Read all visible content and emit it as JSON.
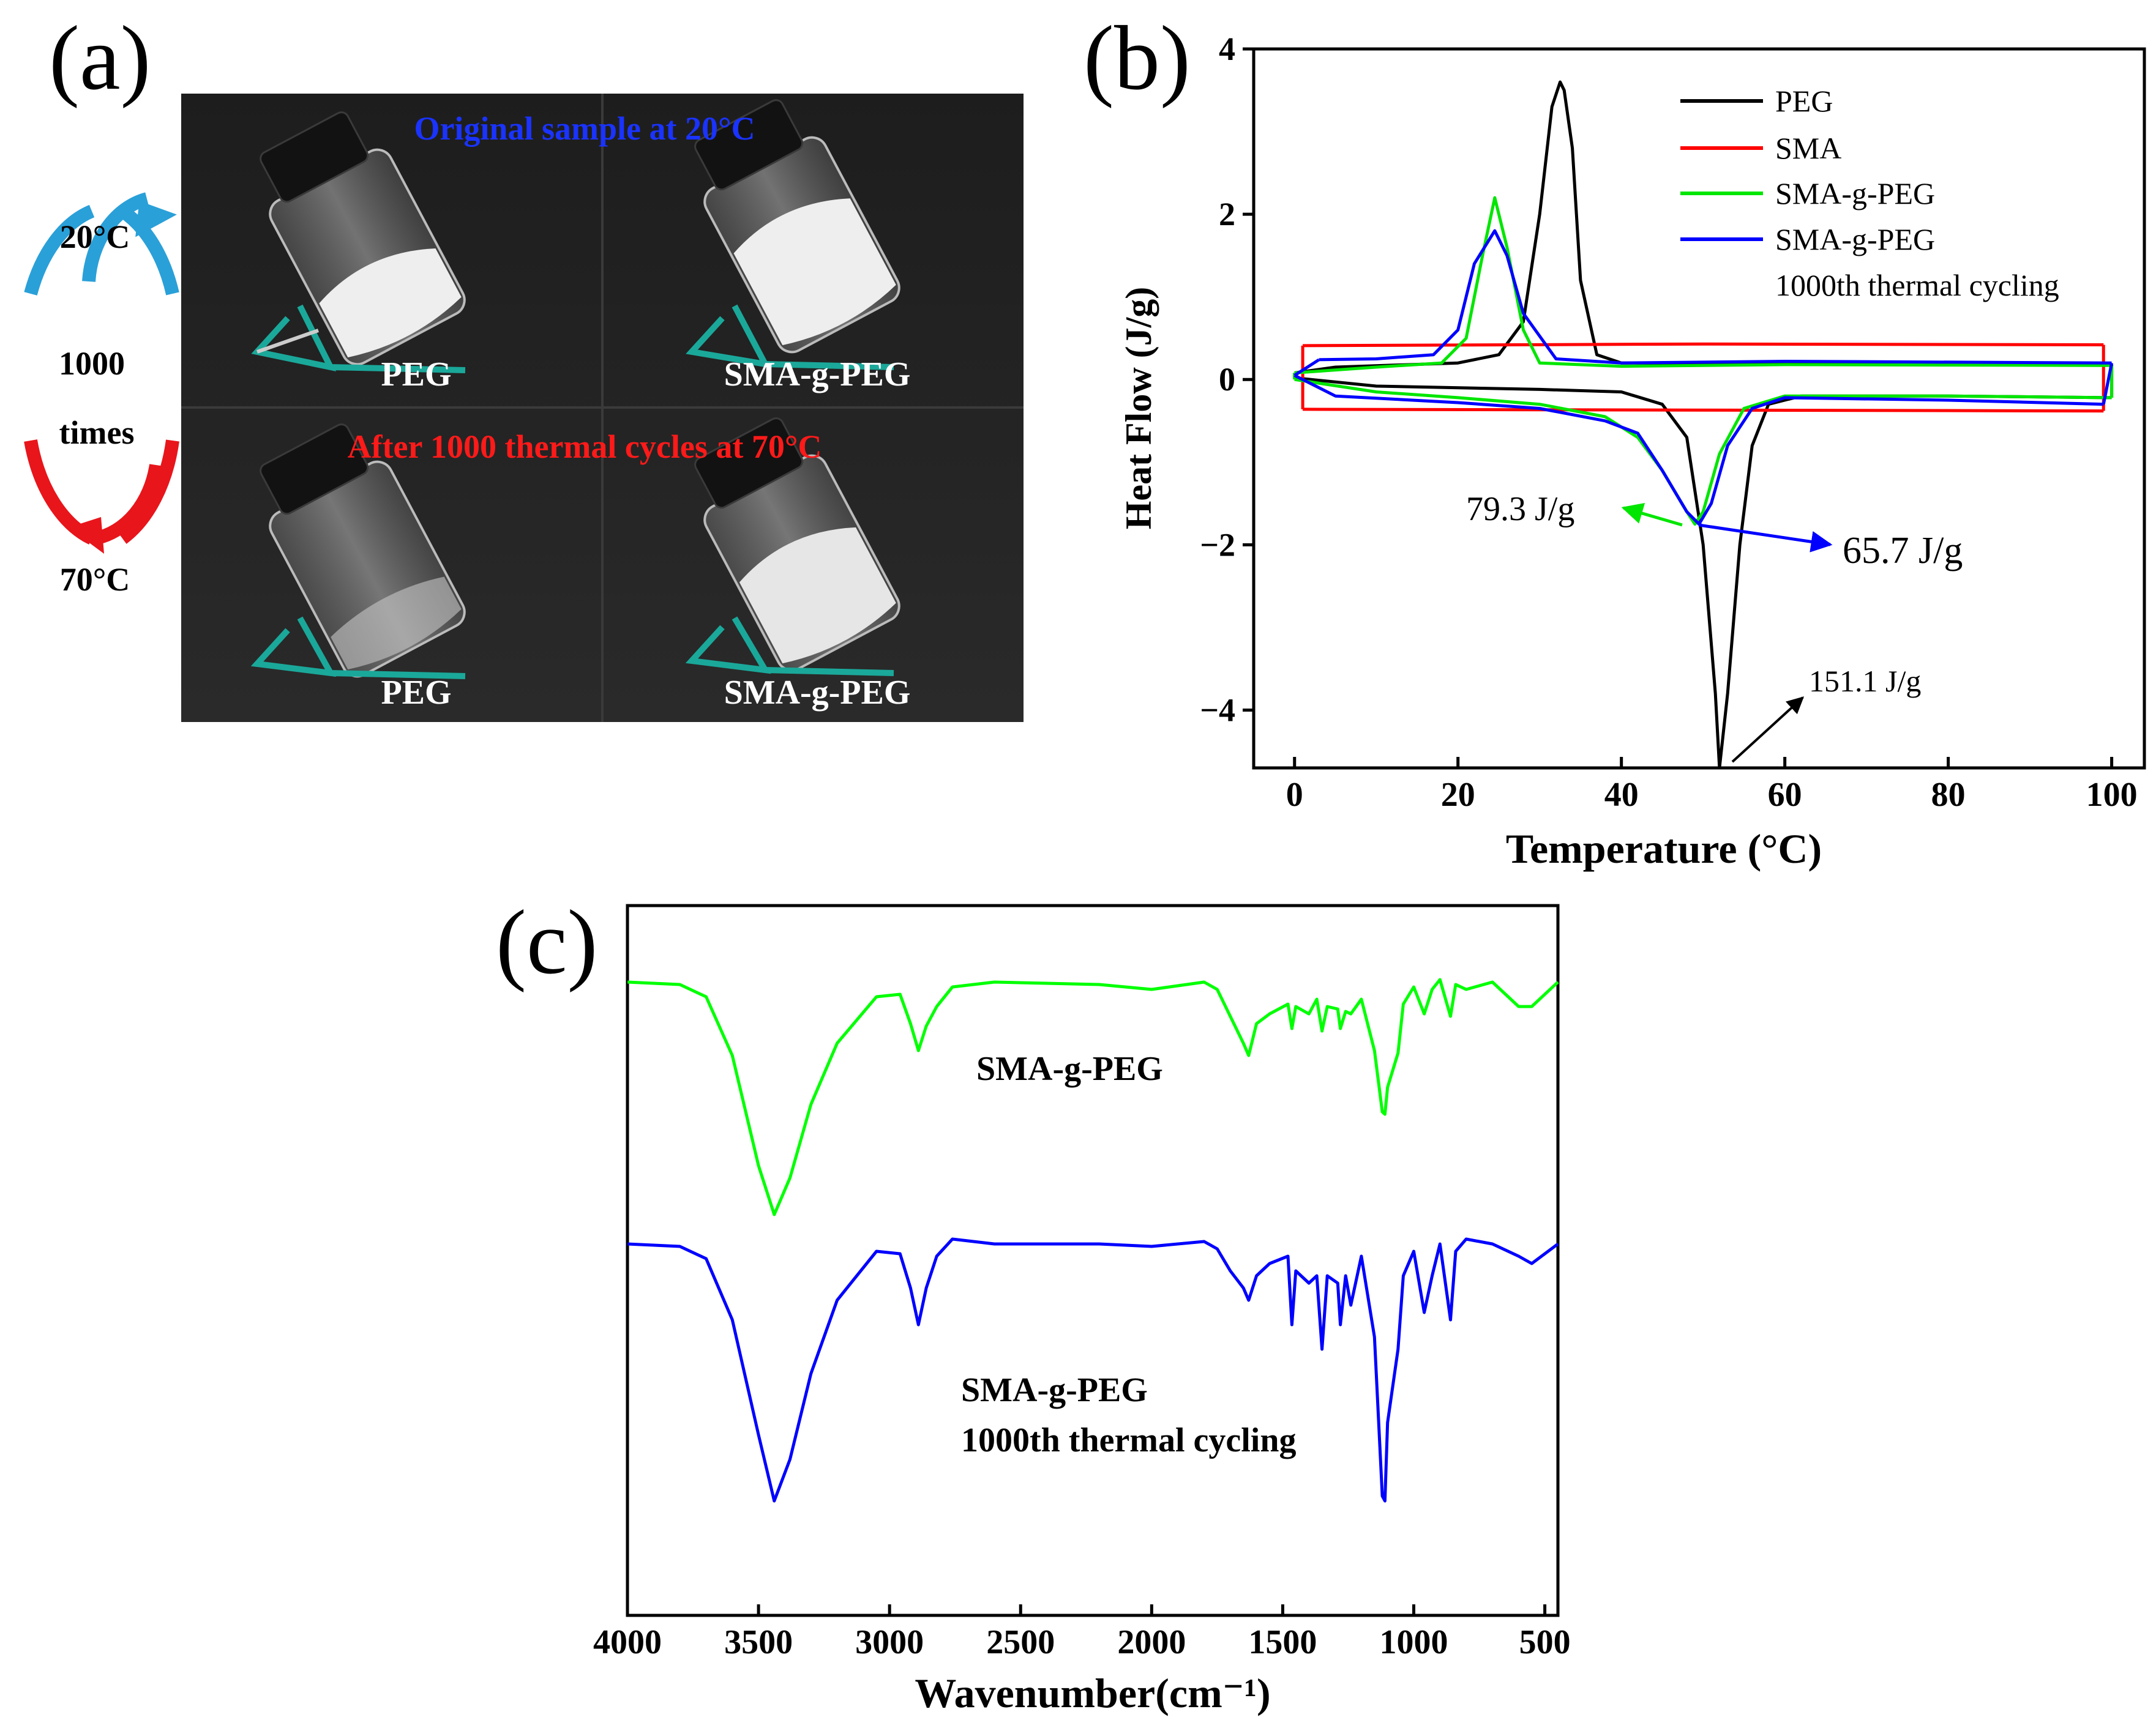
{
  "panel_a": {
    "label": "(a)",
    "cycle": {
      "top_temp": "20°C",
      "count": "1000",
      "unit": "times",
      "bottom_temp": "70°C"
    },
    "photo_top_title": "Original sample at 20°C",
    "photo_bottom_title": "After 1000 thermal cycles at 70°C",
    "photo_labels": [
      "PEG",
      "SMA-g-PEG",
      "PEG",
      "SMA-g-PEG"
    ],
    "colors": {
      "top_title": "#1a33ff",
      "bottom_title": "#ff1a1a",
      "arrow_up": "#2aa0d8",
      "arrow_down": "#e8151b"
    }
  },
  "panel_b_label": "(b)",
  "panel_c_label": "(c)",
  "chart_data": [
    {
      "type": "line",
      "xlabel": "Temperature (°C)",
      "ylabel": "Heat Flow (J/g)",
      "xlim": [
        -5,
        104
      ],
      "ylim": [
        -4.7,
        4
      ],
      "xticks": [
        0,
        20,
        40,
        60,
        80,
        100
      ],
      "yticks": [
        -4,
        -2,
        0,
        2,
        4
      ],
      "ytick_labels": [
        "−4",
        "−2",
        "0",
        "2",
        "4"
      ],
      "grid": false,
      "legend_position": "top-right",
      "legend_extra_line": "1000th thermal cycling",
      "series": [
        {
          "name": "PEG",
          "color": "#000000",
          "cooling": [
            [
              100,
              0.18
            ],
            [
              60,
              0.19
            ],
            [
              40,
              0.2
            ],
            [
              37,
              0.3
            ],
            [
              35,
              1.2
            ],
            [
              34,
              2.8
            ],
            [
              33,
              3.5
            ],
            [
              32.5,
              3.6
            ],
            [
              31.5,
              3.3
            ],
            [
              30,
              2.0
            ],
            [
              28,
              0.7
            ],
            [
              25,
              0.3
            ],
            [
              20,
              0.2
            ],
            [
              5,
              0.15
            ],
            [
              0,
              0.08
            ]
          ],
          "heating": [
            [
              0,
              0.02
            ],
            [
              10,
              -0.08
            ],
            [
              30,
              -0.12
            ],
            [
              40,
              -0.15
            ],
            [
              45,
              -0.3
            ],
            [
              48,
              -0.7
            ],
            [
              50,
              -2.0
            ],
            [
              51.5,
              -3.8
            ],
            [
              52,
              -4.7
            ],
            [
              53,
              -3.8
            ],
            [
              54.5,
              -2.0
            ],
            [
              56,
              -0.8
            ],
            [
              58,
              -0.3
            ],
            [
              62,
              -0.2
            ],
            [
              80,
              -0.2
            ],
            [
              100,
              -0.22
            ]
          ]
        },
        {
          "name": "SMA",
          "color": "#ff0000",
          "cooling": [
            [
              99,
              0.42
            ],
            [
              50,
              0.43
            ],
            [
              1,
              0.41
            ]
          ],
          "heating": [
            [
              1,
              -0.36
            ],
            [
              50,
              -0.37
            ],
            [
              99,
              -0.38
            ]
          ]
        },
        {
          "name": "SMA-g-PEG",
          "color": "#00e600",
          "cooling": [
            [
              100,
              0.17
            ],
            [
              60,
              0.18
            ],
            [
              40,
              0.16
            ],
            [
              30,
              0.2
            ],
            [
              28,
              0.6
            ],
            [
              26,
              1.6
            ],
            [
              24.5,
              2.2
            ],
            [
              23,
              1.5
            ],
            [
              21,
              0.5
            ],
            [
              18,
              0.2
            ],
            [
              10,
              0.15
            ],
            [
              0,
              0.08
            ]
          ],
          "heating": [
            [
              0,
              0.0
            ],
            [
              10,
              -0.15
            ],
            [
              20,
              -0.22
            ],
            [
              30,
              -0.3
            ],
            [
              38,
              -0.45
            ],
            [
              42,
              -0.7
            ],
            [
              45,
              -1.1
            ],
            [
              48,
              -1.6
            ],
            [
              49,
              -1.75
            ],
            [
              50,
              -1.6
            ],
            [
              52,
              -0.9
            ],
            [
              55,
              -0.35
            ],
            [
              60,
              -0.2
            ],
            [
              80,
              -0.2
            ],
            [
              100,
              -0.22
            ]
          ]
        },
        {
          "name": "SMA-g-PEG",
          "color": "#0000ff",
          "cooling": [
            [
              100,
              0.2
            ],
            [
              60,
              0.22
            ],
            [
              40,
              0.2
            ],
            [
              32,
              0.25
            ],
            [
              28,
              0.8
            ],
            [
              26,
              1.5
            ],
            [
              24.5,
              1.8
            ],
            [
              22,
              1.4
            ],
            [
              20,
              0.6
            ],
            [
              17,
              0.3
            ],
            [
              10,
              0.25
            ],
            [
              3,
              0.24
            ]
          ],
          "heating": [
            [
              0,
              0.05
            ],
            [
              5,
              -0.2
            ],
            [
              20,
              -0.28
            ],
            [
              30,
              -0.35
            ],
            [
              38,
              -0.5
            ],
            [
              42,
              -0.65
            ],
            [
              45,
              -1.1
            ],
            [
              48,
              -1.6
            ],
            [
              49.5,
              -1.75
            ],
            [
              51,
              -1.5
            ],
            [
              53,
              -0.8
            ],
            [
              56,
              -0.35
            ],
            [
              60,
              -0.22
            ],
            [
              80,
              -0.25
            ],
            [
              99,
              -0.3
            ]
          ]
        }
      ],
      "annotations": [
        {
          "text": "79.3 J/g",
          "color": "#00e600",
          "target": [
            49,
            -1.75
          ]
        },
        {
          "text": "65.7 J/g",
          "color": "#0000ff",
          "target": [
            49.5,
            -1.75
          ]
        },
        {
          "text": "151.1 J/g",
          "color": "#000000",
          "target": [
            52,
            -4.7
          ]
        }
      ]
    },
    {
      "type": "line",
      "xlabel": "Wavenumber(cm⁻¹)",
      "xlim": [
        4000,
        450
      ],
      "xticks": [
        4000,
        3500,
        3000,
        2500,
        2000,
        1500,
        1000,
        500
      ],
      "yticks": [],
      "grid": false,
      "series": [
        {
          "name": "SMA-g-PEG",
          "color": "#00ff00",
          "points": [
            [
              4000,
              0.0
            ],
            [
              3800,
              0.01
            ],
            [
              3700,
              0.06
            ],
            [
              3600,
              0.3
            ],
            [
              3500,
              0.75
            ],
            [
              3440,
              0.95
            ],
            [
              3380,
              0.8
            ],
            [
              3300,
              0.5
            ],
            [
              3200,
              0.25
            ],
            [
              3050,
              0.06
            ],
            [
              2960,
              0.05
            ],
            [
              2920,
              0.17
            ],
            [
              2890,
              0.28
            ],
            [
              2860,
              0.18
            ],
            [
              2820,
              0.1
            ],
            [
              2760,
              0.02
            ],
            [
              2600,
              0.0
            ],
            [
              2200,
              0.01
            ],
            [
              2000,
              0.03
            ],
            [
              1800,
              0.0
            ],
            [
              1750,
              0.03
            ],
            [
              1700,
              0.14
            ],
            [
              1650,
              0.25
            ],
            [
              1630,
              0.3
            ],
            [
              1600,
              0.17
            ],
            [
              1550,
              0.13
            ],
            [
              1480,
              0.09
            ],
            [
              1465,
              0.19
            ],
            [
              1450,
              0.1
            ],
            [
              1400,
              0.13
            ],
            [
              1370,
              0.07
            ],
            [
              1350,
              0.2
            ],
            [
              1330,
              0.1
            ],
            [
              1290,
              0.11
            ],
            [
              1280,
              0.19
            ],
            [
              1260,
              0.12
            ],
            [
              1240,
              0.13
            ],
            [
              1200,
              0.07
            ],
            [
              1150,
              0.28
            ],
            [
              1120,
              0.53
            ],
            [
              1110,
              0.54
            ],
            [
              1100,
              0.43
            ],
            [
              1060,
              0.29
            ],
            [
              1040,
              0.09
            ],
            [
              1000,
              0.02
            ],
            [
              960,
              0.13
            ],
            [
              930,
              0.03
            ],
            [
              900,
              -0.01
            ],
            [
              860,
              0.14
            ],
            [
              840,
              0.01
            ],
            [
              800,
              0.03
            ],
            [
              700,
              0.0
            ],
            [
              600,
              0.1
            ],
            [
              550,
              0.1
            ],
            [
              450,
              0.0
            ]
          ]
        },
        {
          "name": "SMA-g-PEG",
          "color": "#0000ff",
          "points": [
            [
              4000,
              1.07
            ],
            [
              3800,
              1.08
            ],
            [
              3700,
              1.13
            ],
            [
              3600,
              1.38
            ],
            [
              3500,
              1.85
            ],
            [
              3440,
              2.12
            ],
            [
              3380,
              1.95
            ],
            [
              3300,
              1.6
            ],
            [
              3200,
              1.3
            ],
            [
              3050,
              1.1
            ],
            [
              2960,
              1.11
            ],
            [
              2920,
              1.25
            ],
            [
              2890,
              1.4
            ],
            [
              2860,
              1.25
            ],
            [
              2820,
              1.12
            ],
            [
              2760,
              1.05
            ],
            [
              2600,
              1.07
            ],
            [
              2200,
              1.07
            ],
            [
              2000,
              1.08
            ],
            [
              1800,
              1.06
            ],
            [
              1750,
              1.09
            ],
            [
              1700,
              1.18
            ],
            [
              1650,
              1.25
            ],
            [
              1630,
              1.3
            ],
            [
              1600,
              1.2
            ],
            [
              1550,
              1.15
            ],
            [
              1480,
              1.12
            ],
            [
              1465,
              1.4
            ],
            [
              1450,
              1.18
            ],
            [
              1400,
              1.23
            ],
            [
              1370,
              1.2
            ],
            [
              1350,
              1.5
            ],
            [
              1330,
              1.2
            ],
            [
              1290,
              1.23
            ],
            [
              1280,
              1.4
            ],
            [
              1260,
              1.2
            ],
            [
              1240,
              1.32
            ],
            [
              1200,
              1.12
            ],
            [
              1150,
              1.45
            ],
            [
              1120,
              2.1
            ],
            [
              1110,
              2.12
            ],
            [
              1100,
              1.8
            ],
            [
              1060,
              1.5
            ],
            [
              1040,
              1.2
            ],
            [
              1000,
              1.1
            ],
            [
              960,
              1.35
            ],
            [
              930,
              1.2
            ],
            [
              900,
              1.07
            ],
            [
              860,
              1.38
            ],
            [
              840,
              1.1
            ],
            [
              800,
              1.05
            ],
            [
              700,
              1.07
            ],
            [
              600,
              1.12
            ],
            [
              550,
              1.15
            ],
            [
              450,
              1.07
            ]
          ]
        }
      ],
      "annotations": [
        {
          "text": "SMA-g-PEG"
        },
        {
          "text": "SMA-g-PEG"
        },
        {
          "text": "1000th thermal cycling"
        }
      ]
    }
  ]
}
